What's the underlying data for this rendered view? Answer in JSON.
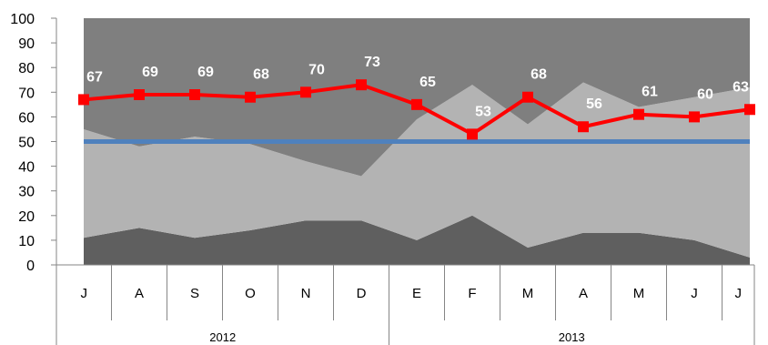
{
  "chart_data": {
    "type": "area",
    "title": "",
    "xlabel": "",
    "ylabel": "",
    "ylim": [
      0,
      100
    ],
    "yticks": [
      0,
      10,
      20,
      30,
      40,
      50,
      60,
      70,
      80,
      90,
      100
    ],
    "grid": false,
    "legend": "none",
    "categories": [
      "J",
      "A",
      "S",
      "O",
      "N",
      "D",
      "E",
      "F",
      "M",
      "A",
      "M",
      "J",
      "J"
    ],
    "groups": [
      {
        "label": "2012",
        "count": 6
      },
      {
        "label": "2013",
        "count": 7
      }
    ],
    "stacked_areas": [
      {
        "color": "#5f5f5f",
        "values": [
          11,
          15,
          11,
          14,
          18,
          18,
          10,
          20,
          7,
          13,
          13,
          10,
          3
        ]
      },
      {
        "color": "#b3b3b3",
        "values": [
          44,
          33,
          41,
          35,
          24,
          18,
          49,
          53,
          50,
          61,
          51,
          58,
          69
        ]
      },
      {
        "color": "#7f7f7f",
        "values": [
          45,
          52,
          48,
          51,
          58,
          64,
          41,
          27,
          43,
          26,
          36,
          32,
          28
        ]
      }
    ],
    "line_series": {
      "color": "#ff0000",
      "values": [
        67,
        69,
        69,
        68,
        70,
        73,
        65,
        53,
        68,
        56,
        61,
        60,
        63
      ]
    },
    "data_labels": [
      "67",
      "69",
      "69",
      "68",
      "70",
      "73",
      "65",
      "53",
      "68",
      "56",
      "61",
      "60",
      "63"
    ],
    "reference_line": {
      "value": 50,
      "color": "#4f81bd"
    }
  }
}
